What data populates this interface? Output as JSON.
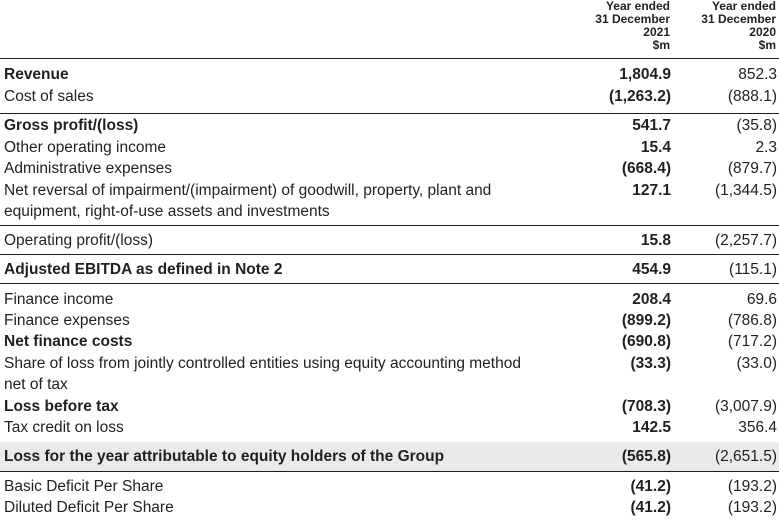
{
  "header": {
    "col2021": [
      "Year ended",
      "31 December",
      "2021",
      "$m"
    ],
    "col2020": [
      "Year ended",
      "31 December",
      "2020",
      "$m"
    ]
  },
  "rows": [
    {
      "label": "Revenue",
      "v2021": "1,804.9",
      "v2020": "852.3"
    },
    {
      "label": "Cost of sales",
      "v2021": "(1,263.2)",
      "v2020": "(888.1)"
    },
    {
      "label": "Gross profit/(loss)",
      "v2021": "541.7",
      "v2020": "(35.8)"
    },
    {
      "label": "Other operating income",
      "v2021": "15.4",
      "v2020": "2.3"
    },
    {
      "label": "Administrative expenses",
      "v2021": "(668.4)",
      "v2020": "(879.7)"
    },
    {
      "label_line1": "Net reversal of impairment/(impairment) of goodwill, property, plant and",
      "label_line2": "equipment, right-of-use assets and investments",
      "v2021": "127.1",
      "v2020": "(1,344.5)"
    },
    {
      "label": "Operating profit/(loss)",
      "v2021": "15.8",
      "v2020": "(2,257.7)"
    },
    {
      "label": "Adjusted EBITDA as defined in Note 2",
      "v2021": "454.9",
      "v2020": "(115.1)"
    },
    {
      "label": "Finance income",
      "v2021": "208.4",
      "v2020": "69.6"
    },
    {
      "label": "Finance expenses",
      "v2021": "(899.2)",
      "v2020": "(786.8)"
    },
    {
      "label": "Net finance costs",
      "v2021": "(690.8)",
      "v2020": "(717.2)"
    },
    {
      "label_line1": "Share of loss from jointly controlled entities using equity accounting method",
      "label_line2": "net of tax",
      "v2021": "(33.3)",
      "v2020": "(33.0)"
    },
    {
      "label": "Loss before tax",
      "v2021": "(708.3)",
      "v2020": "(3,007.9)"
    },
    {
      "label": "Tax credit on loss",
      "v2021": "142.5",
      "v2020": "356.4"
    },
    {
      "label": "Loss for the year attributable to equity holders of the Group",
      "v2021": "(565.8)",
      "v2020": "(2,651.5)"
    },
    {
      "label": "Basic Deficit Per Share",
      "v2021": "(41.2)",
      "v2020": "(193.2)"
    },
    {
      "label": "Diluted Deficit Per Share",
      "v2021": "(41.2)",
      "v2020": "(193.2)"
    }
  ]
}
